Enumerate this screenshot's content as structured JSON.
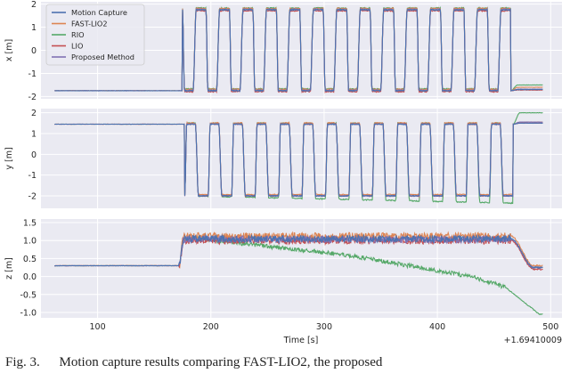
{
  "colors": {
    "Motion Capture": "#4c72b0",
    "FAST-LIO2": "#dd8452",
    "RIO": "#55a868",
    "LIO": "#c44e52",
    "Proposed Method": "#8172b3",
    "panel_bg": "#eaeaf2",
    "grid": "#ffffff"
  },
  "legend": {
    "placement": "top-left of first panel",
    "items": [
      "Motion Capture",
      "FAST-LIO2",
      "RIO",
      "LIO",
      "Proposed Method"
    ]
  },
  "axis": {
    "xlabel": "Time [s]",
    "offset_label": "+1.69410009"
  },
  "caption": {
    "parts": [
      "Fig. 3.",
      "Motion capture results comparing FAST-LIO2, the proposed"
    ]
  },
  "chart_data": [
    {
      "type": "line",
      "ylabel": "x [m]",
      "xlim": [
        50,
        510
      ],
      "ylim": [
        -2.1,
        2.1
      ],
      "xticks": [
        100,
        200,
        300,
        400,
        500
      ],
      "yticks": [
        -2,
        -1,
        0,
        1,
        2
      ],
      "grid": true,
      "legend": "top-left",
      "series": [
        {
          "name": "Motion Capture",
          "approx": "flat at -1.75 until t=172, then oscillating between about -1.75 and 1.8 (14 cycles) until t=463, then settling near -1.7"
        },
        {
          "name": "FAST-LIO2",
          "approx": "follows Motion Capture, ends near -1.6"
        },
        {
          "name": "RIO",
          "approx": "follows Motion Capture, ends near -1.5"
        },
        {
          "name": "LIO",
          "approx": "follows Motion Capture, ends near -1.7"
        },
        {
          "name": "Proposed Method",
          "approx": "follows Motion Capture, ends near -1.7"
        }
      ]
    },
    {
      "type": "line",
      "ylabel": "y [m]",
      "xlim": [
        50,
        510
      ],
      "ylim": [
        -2.6,
        2.2
      ],
      "xticks": [
        100,
        200,
        300,
        400,
        500
      ],
      "yticks": [
        -2,
        -1,
        0,
        1,
        2
      ],
      "grid": true,
      "series": [
        {
          "name": "Motion Capture",
          "approx": "flat at 1.45 until t=175, then oscillating between about -2.0 and 1.45 (14 cycles) until t=463, then settling near 1.5"
        },
        {
          "name": "FAST-LIO2",
          "approx": "follows Motion Capture, ends near 1.55"
        },
        {
          "name": "RIO",
          "approx": "follows Motion Capture with growing drift, minima near -2.4, ends near 2.0"
        },
        {
          "name": "LIO",
          "approx": "follows Motion Capture, ends near 1.5"
        },
        {
          "name": "Proposed Method",
          "approx": "follows Motion Capture, ends near 1.55"
        }
      ]
    },
    {
      "type": "line",
      "ylabel": "z [m]",
      "xlim": [
        50,
        510
      ],
      "ylim": [
        -1.15,
        1.6
      ],
      "xticks": [
        100,
        200,
        300,
        400,
        500
      ],
      "yticks": [
        -1.0,
        -0.5,
        0.0,
        0.5,
        1.0,
        1.5
      ],
      "grid": true,
      "series": [
        {
          "name": "Motion Capture",
          "approx": "0.3 until t=172, rises to about 1.05 and stays between 0.9 and 1.2 until t=465, then falls to about 0.25"
        },
        {
          "name": "FAST-LIO2",
          "approx": "slightly above Motion Capture, up to about 1.35, ends near 0.3"
        },
        {
          "name": "RIO",
          "approx": "0.3 until t=172, rises to about 1.05, drifts down to about 0.6 at t=320, to 0.0 at t=430, to -0.3 at t=460, then drops to -1.05 by t=490"
        },
        {
          "name": "LIO",
          "approx": "close to Motion Capture, ends near 0.2"
        },
        {
          "name": "Proposed Method",
          "approx": "close to Motion Capture, ends near 0.25"
        }
      ]
    }
  ]
}
